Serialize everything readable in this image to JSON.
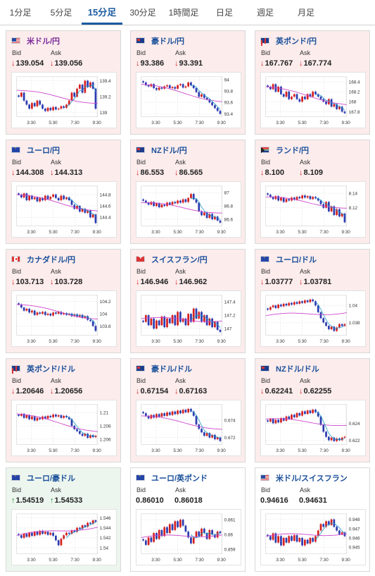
{
  "tabs": [
    {
      "label": "1分足",
      "active": false
    },
    {
      "label": "5分足",
      "active": false
    },
    {
      "label": "15分足",
      "active": true
    },
    {
      "label": "30分足",
      "active": false
    },
    {
      "label": "1時間足",
      "active": false
    },
    {
      "label": "日足",
      "active": false
    },
    {
      "label": "週足",
      "active": false
    },
    {
      "label": "月足",
      "active": false
    }
  ],
  "labels": {
    "bid": "Bid",
    "ask": "Ask"
  },
  "colors": {
    "up_candle": "#d42020",
    "down_candle": "#2c3bb0",
    "ma": "#cc44cc",
    "ma_short": "#1c9ac8",
    "price_down": "#d22222",
    "price_up": "#1a8a3a"
  },
  "cards": [
    {
      "pair": "米ドル/円",
      "flag": "us",
      "name_color": "purple",
      "trend": "down",
      "bid": "139.054",
      "ask": "139.056",
      "bg": "down",
      "chart_data": {
        "type": "candlestick",
        "x_ticks": [
          "3:30",
          "5:30",
          "7:30",
          "9:30"
        ],
        "y_ticks": [
          "139.4",
          "139.2",
          "139"
        ],
        "ylim": [
          138.95,
          139.45
        ],
        "ma_start": 139.28,
        "ma_end": 139.12,
        "closes": [
          139.2,
          139.25,
          139.15,
          139.1,
          139.05,
          139.12,
          139.08,
          139.15,
          139.1,
          139.05,
          139.02,
          139.06,
          139.03,
          139.07,
          139.04,
          139.05,
          139.08,
          139.06,
          139.1,
          139.15,
          139.25,
          139.2,
          139.3,
          139.35,
          139.25,
          139.4,
          139.32,
          139.38,
          139.3,
          139.05
        ]
      }
    },
    {
      "pair": "豪ドル/円",
      "flag": "au",
      "name_color": "",
      "trend": "down",
      "bid": "93.386",
      "ask": "93.391",
      "bg": "down",
      "chart_data": {
        "type": "candlestick",
        "x_ticks": [
          "3:30",
          "5:30",
          "7:30",
          "9:30"
        ],
        "y_ticks": [
          "94",
          "93.8",
          "93.6",
          "93.4"
        ],
        "ylim": [
          93.35,
          94.05
        ],
        "ma_start": 93.92,
        "ma_end": 93.62,
        "closes": [
          93.95,
          93.9,
          93.88,
          93.92,
          93.85,
          93.82,
          93.86,
          93.84,
          93.88,
          93.9,
          93.85,
          93.87,
          93.84,
          93.9,
          93.92,
          93.86,
          93.88,
          93.95,
          93.9,
          93.85,
          93.78,
          93.7,
          93.74,
          93.68,
          93.65,
          93.6,
          93.55,
          93.5,
          93.45,
          93.4
        ]
      }
    },
    {
      "pair": "英ポンド/円",
      "flag": "gb",
      "name_color": "",
      "trend": "down",
      "bid": "167.767",
      "ask": "167.774",
      "bg": "down",
      "chart_data": {
        "type": "candlestick",
        "x_ticks": [
          "3:30",
          "5:30",
          "7:30",
          "9:30"
        ],
        "y_ticks": [
          "168.4",
          "168.2",
          "168",
          "167.8"
        ],
        "ylim": [
          167.7,
          168.5
        ],
        "ma_start": 168.3,
        "ma_end": 167.95,
        "closes": [
          168.3,
          168.25,
          168.35,
          168.2,
          168.3,
          168.15,
          168.1,
          168.2,
          168.05,
          168.1,
          168.15,
          168.05,
          168.0,
          168.1,
          168.05,
          168.15,
          168.1,
          168.2,
          168.15,
          168.1,
          168.05,
          168.0,
          167.95,
          168.05,
          167.9,
          167.95,
          167.85,
          167.9,
          167.8,
          167.77
        ]
      }
    },
    {
      "pair": "ユーロ/円",
      "flag": "eu",
      "name_color": "",
      "trend": "down",
      "bid": "144.308",
      "ask": "144.313",
      "bg": "down",
      "chart_data": {
        "type": "candlestick",
        "x_ticks": [
          "3:30",
          "5:30",
          "7:30",
          "9:30"
        ],
        "y_ticks": [
          "144.8",
          "144.6",
          "144.4"
        ],
        "ylim": [
          144.25,
          144.95
        ],
        "ma_start": 144.8,
        "ma_end": 144.52,
        "closes": [
          144.8,
          144.75,
          144.82,
          144.7,
          144.78,
          144.72,
          144.75,
          144.68,
          144.74,
          144.7,
          144.78,
          144.72,
          144.76,
          144.8,
          144.74,
          144.7,
          144.78,
          144.72,
          144.75,
          144.7,
          144.62,
          144.55,
          144.6,
          144.5,
          144.55,
          144.48,
          144.52,
          144.4,
          144.45,
          144.3
        ]
      }
    },
    {
      "pair": "NZドル/円",
      "flag": "nz",
      "name_color": "",
      "trend": "down",
      "bid": "86.553",
      "ask": "86.565",
      "bg": "down",
      "chart_data": {
        "type": "candlestick",
        "x_ticks": [
          "3:30",
          "5:30",
          "7:30",
          "9:30"
        ],
        "y_ticks": [
          "87",
          "86.8",
          "86.6"
        ],
        "ylim": [
          86.5,
          87.1
        ],
        "ma_start": 86.85,
        "ma_end": 86.7,
        "closes": [
          86.88,
          86.85,
          86.82,
          86.86,
          86.8,
          86.84,
          86.78,
          86.82,
          86.8,
          86.85,
          86.82,
          86.86,
          86.84,
          86.88,
          86.85,
          86.9,
          86.86,
          86.92,
          86.98,
          86.9,
          86.85,
          86.72,
          86.66,
          86.7,
          86.62,
          86.68,
          86.6,
          86.64,
          86.58,
          86.55
        ]
      }
    },
    {
      "pair": "ランド/円",
      "flag": "za",
      "name_color": "",
      "trend": "down",
      "bid": "8.100",
      "ask": "8.109",
      "bg": "down",
      "chart_data": {
        "type": "candlestick",
        "x_ticks": [
          "3:30",
          "5:30",
          "7:30",
          "9:30"
        ],
        "y_ticks": [
          "8.14",
          "8.12"
        ],
        "ylim": [
          8.095,
          8.15
        ],
        "ma_start": 8.135,
        "ma_end": 8.12,
        "closes": [
          8.138,
          8.135,
          8.132,
          8.136,
          8.13,
          8.134,
          8.128,
          8.132,
          8.13,
          8.134,
          8.131,
          8.135,
          8.133,
          8.137,
          8.134,
          8.136,
          8.132,
          8.135,
          8.133,
          8.13,
          8.125,
          8.12,
          8.128,
          8.115,
          8.122,
          8.11,
          8.118,
          8.108,
          8.112,
          8.1
        ]
      }
    },
    {
      "pair": "カナダドル/円",
      "flag": "ca",
      "name_color": "",
      "trend": "down",
      "bid": "103.713",
      "ask": "103.728",
      "bg": "down",
      "chart_data": {
        "type": "candlestick",
        "x_ticks": [
          "3:30",
          "5:30",
          "7:30",
          "9:30"
        ],
        "y_ticks": [
          "104.2",
          "104",
          "103.8"
        ],
        "ylim": [
          103.65,
          104.3
        ],
        "ma_start": 104.15,
        "ma_end": 103.92,
        "closes": [
          104.15,
          104.1,
          104.05,
          104.08,
          104.02,
          104.05,
          103.98,
          104.02,
          104.0,
          104.03,
          103.98,
          104.0,
          103.97,
          104.02,
          104.0,
          104.03,
          103.99,
          104.01,
          103.98,
          104.0,
          103.96,
          103.99,
          103.95,
          103.98,
          103.93,
          103.96,
          103.9,
          103.88,
          103.8,
          103.72
        ]
      }
    },
    {
      "pair": "スイスフラン/円",
      "flag": "ch",
      "name_color": "",
      "trend": "down",
      "bid": "146.946",
      "ask": "146.962",
      "bg": "down",
      "chart_data": {
        "type": "candlestick",
        "x_ticks": [
          "3:30",
          "5:30",
          "7:30",
          "9:30"
        ],
        "y_ticks": [
          "147.4",
          "147.2",
          "147"
        ],
        "ylim": [
          146.9,
          147.5
        ],
        "ma_start": 147.15,
        "ma_end": 147.12,
        "closes": [
          147.1,
          147.2,
          147.05,
          147.15,
          147.0,
          147.12,
          147.05,
          147.18,
          147.02,
          147.15,
          147.08,
          147.2,
          147.05,
          147.25,
          147.1,
          147.15,
          147.05,
          147.22,
          147.1,
          147.3,
          147.15,
          147.25,
          147.1,
          147.2,
          147.05,
          147.15,
          147.02,
          147.1,
          146.98,
          146.95
        ]
      }
    },
    {
      "pair": "ユーロ/ドル",
      "flag": "eu",
      "name_color": "",
      "trend": "down",
      "bid": "1.03777",
      "ask": "1.03781",
      "bg": "down",
      "chart_data": {
        "type": "candlestick",
        "x_ticks": [
          "3:30",
          "5:30",
          "7:30",
          "9:30"
        ],
        "y_ticks": [
          "1.04",
          "1.038"
        ],
        "ylim": [
          1.0365,
          1.0412
        ],
        "ma_start": 1.0388,
        "ma_end": 1.0392,
        "closes": [
          1.0395,
          1.0398,
          1.04,
          1.0397,
          1.0401,
          1.0399,
          1.0402,
          1.04,
          1.0403,
          1.0401,
          1.0404,
          1.0402,
          1.0405,
          1.0403,
          1.0406,
          1.0404,
          1.0407,
          1.0405,
          1.04,
          1.0392,
          1.0385,
          1.038,
          1.0376,
          1.0372,
          1.0375,
          1.037,
          1.0374,
          1.0378,
          1.0376,
          1.0378
        ]
      }
    },
    {
      "pair": "英ポンド/ドル",
      "flag": "gb",
      "name_color": "",
      "trend": "down",
      "bid": "1.20646",
      "ask": "1.20656",
      "bg": "down",
      "chart_data": {
        "type": "candlestick",
        "x_ticks": [
          "3:30",
          "5:30",
          "7:30",
          "9:30"
        ],
        "y_ticks": [
          "1.21",
          "1.208",
          "1.206"
        ],
        "ylim": [
          1.2052,
          1.2112
        ],
        "ma_start": 1.2098,
        "ma_end": 1.2072,
        "closes": [
          1.2095,
          1.2098,
          1.2092,
          1.2096,
          1.209,
          1.2094,
          1.2088,
          1.2092,
          1.209,
          1.2094,
          1.2091,
          1.2095,
          1.2093,
          1.2097,
          1.2094,
          1.2096,
          1.2092,
          1.2095,
          1.2093,
          1.209,
          1.208,
          1.2075,
          1.2072,
          1.2068,
          1.2065,
          1.2068,
          1.2062,
          1.2066,
          1.2063,
          1.2065
        ]
      }
    },
    {
      "pair": "豪ドル/ドル",
      "flag": "au",
      "name_color": "",
      "trend": "down",
      "bid": "0.67154",
      "ask": "0.67163",
      "bg": "down",
      "chart_data": {
        "type": "candlestick",
        "x_ticks": [
          "3:30",
          "5:30",
          "7:30",
          "9:30"
        ],
        "y_ticks": [
          "0.674",
          "0.672"
        ],
        "ylim": [
          0.6712,
          0.6758
        ],
        "ma_start": 0.6745,
        "ma_end": 0.673,
        "closes": [
          0.6748,
          0.6745,
          0.6742,
          0.6746,
          0.6743,
          0.6747,
          0.6744,
          0.6748,
          0.6745,
          0.6749,
          0.6746,
          0.675,
          0.6747,
          0.6751,
          0.6748,
          0.6752,
          0.6749,
          0.6753,
          0.675,
          0.6745,
          0.6735,
          0.673,
          0.6726,
          0.6722,
          0.6725,
          0.672,
          0.6723,
          0.6718,
          0.672,
          0.6716
        ]
      }
    },
    {
      "pair": "NZドル/ドル",
      "flag": "nz",
      "name_color": "",
      "trend": "down",
      "bid": "0.62241",
      "ask": "0.62255",
      "bg": "down",
      "chart_data": {
        "type": "candlestick",
        "x_ticks": [
          "3:30",
          "5:30",
          "7:30",
          "9:30"
        ],
        "y_ticks": [
          "0.624",
          "0.622"
        ],
        "ylim": [
          0.6215,
          0.6262
        ],
        "ma_start": 0.6245,
        "ma_end": 0.6238,
        "closes": [
          0.6242,
          0.6245,
          0.624,
          0.6244,
          0.6241,
          0.6246,
          0.6243,
          0.6248,
          0.6245,
          0.625,
          0.6247,
          0.6252,
          0.6249,
          0.6254,
          0.6251,
          0.6255,
          0.6252,
          0.6256,
          0.6253,
          0.6248,
          0.6238,
          0.623,
          0.6224,
          0.622,
          0.6223,
          0.6219,
          0.6222,
          0.622,
          0.6223,
          0.6224
        ]
      }
    },
    {
      "pair": "ユーロ/豪ドル",
      "flag": "eu",
      "name_color": "",
      "trend": "up",
      "bid": "1.54519",
      "ask": "1.54533",
      "bg": "up",
      "chart_data": {
        "type": "candlestick",
        "x_ticks": [
          "3:30",
          "5:30",
          "7:30",
          "9:30"
        ],
        "y_ticks": [
          "1.546",
          "1.544",
          "1.542",
          "1.54"
        ],
        "ylim": [
          1.5388,
          1.5468
        ],
        "ma_start": 1.5425,
        "ma_end": 1.5442,
        "closes": [
          1.5425,
          1.542,
          1.5428,
          1.5422,
          1.543,
          1.5424,
          1.5432,
          1.5426,
          1.5434,
          1.5428,
          1.5432,
          1.5426,
          1.543,
          1.5424,
          1.5415,
          1.5405,
          1.5418,
          1.5425,
          1.543,
          1.5428,
          1.5435,
          1.5432,
          1.544,
          1.5438,
          1.5445,
          1.5442,
          1.545,
          1.5448,
          1.5455,
          1.5452
        ]
      }
    },
    {
      "pair": "ユーロ/英ポンド",
      "flag": "eu",
      "name_color": "",
      "trend": "none",
      "bid": "0.86010",
      "ask": "0.86018",
      "bg": "flat",
      "chart_data": {
        "type": "candlestick",
        "x_ticks": [
          "3:30",
          "5:30",
          "7:30",
          "9:30"
        ],
        "y_ticks": [
          "0.861",
          "0.86",
          "0.859"
        ],
        "ylim": [
          0.8587,
          0.8614
        ],
        "ma_start": 0.8598,
        "ma_end": 0.86,
        "closes": [
          0.8596,
          0.8593,
          0.8598,
          0.8595,
          0.8601,
          0.8597,
          0.8603,
          0.8599,
          0.8605,
          0.8601,
          0.8607,
          0.8603,
          0.8609,
          0.8605,
          0.861,
          0.8606,
          0.8602,
          0.8598,
          0.8594,
          0.8598,
          0.8602,
          0.8599,
          0.8604,
          0.8601,
          0.8597,
          0.8603,
          0.86,
          0.8598,
          0.8602,
          0.8601
        ]
      }
    },
    {
      "pair": "米ドル/スイスフラン",
      "flag": "us",
      "name_color": "",
      "trend": "none",
      "bid": "0.94616",
      "ask": "0.94631",
      "bg": "flat",
      "chart_data": {
        "type": "candlestick",
        "x_ticks": [
          "3:30",
          "5:30",
          "7:30",
          "9:30"
        ],
        "y_ticks": [
          "0.948",
          "0.947",
          "0.946",
          "0.945"
        ],
        "ylim": [
          0.9443,
          0.9486
        ],
        "ma_start": 0.9462,
        "ma_end": 0.9465,
        "closes": [
          0.9462,
          0.9458,
          0.9465,
          0.9455,
          0.9462,
          0.9452,
          0.946,
          0.9455,
          0.9462,
          0.9457,
          0.9463,
          0.9456,
          0.946,
          0.9452,
          0.9458,
          0.9454,
          0.946,
          0.9456,
          0.9462,
          0.9468,
          0.9475,
          0.9472,
          0.9478,
          0.9474,
          0.948,
          0.9472,
          0.9468,
          0.9464,
          0.9466,
          0.9462
        ]
      }
    }
  ]
}
